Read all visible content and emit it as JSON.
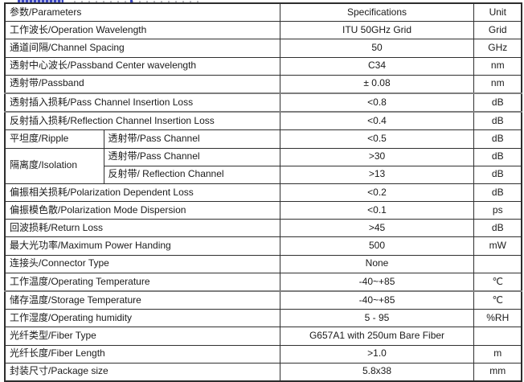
{
  "colors": {
    "table_border": "#2d2d2d",
    "thick_divider": "#7e7e7e",
    "clipped_heading_blue": "#3a46c0",
    "text": "#1a1a1a",
    "background": "#ffffff"
  },
  "table": {
    "rows": [
      {
        "type": "header",
        "param": "参数/Parameters",
        "spec": "Specifications",
        "unit": "Unit"
      },
      {
        "type": "normal",
        "param": "工作波长/Operation Wavelength",
        "spec": "ITU 50GHz Grid",
        "unit": "Grid"
      },
      {
        "type": "normal",
        "param": "通道间隔/Channel Spacing",
        "spec": "50",
        "unit": "GHz"
      },
      {
        "type": "normal",
        "param": "透射中心波长/Passband Center wavelength",
        "spec": "C34",
        "unit": "nm"
      },
      {
        "type": "normal",
        "param": "透射带/Passband",
        "spec": "± 0.08",
        "unit": "nm"
      },
      {
        "type": "normal",
        "param": "透射插入损耗/Pass Channel Insertion Loss",
        "spec": "<0.8",
        "unit": "dB"
      },
      {
        "type": "normal",
        "param": "反射插入损耗/Reflection Channel Insertion Loss",
        "spec": "<0.4",
        "unit": "dB"
      },
      {
        "type": "split",
        "param": "平坦度/Ripple",
        "sub": "透射带/Pass Channel",
        "spec": "<0.5",
        "unit": "dB"
      },
      {
        "type": "span-start",
        "param": "隔离度/Isolation",
        "sub": "透射带/Pass Channel",
        "spec": ">30",
        "unit": "dB"
      },
      {
        "type": "span-cont",
        "sub": "反射带/ Reflection Channel",
        "spec": ">13",
        "unit": "dB"
      },
      {
        "type": "normal",
        "param": "偏振相关损耗/Polarization Dependent Loss",
        "spec": "<0.2",
        "unit": "dB"
      },
      {
        "type": "normal",
        "param": "偏振模色散/Polarization Mode Dispersion",
        "spec": "<0.1",
        "unit": "ps"
      },
      {
        "type": "normal",
        "param": "回波损耗/Return Loss",
        "spec": ">45",
        "unit": "dB"
      },
      {
        "type": "normal",
        "param": "最大光功率/Maximum Power Handing",
        "spec": "500",
        "unit": "mW"
      },
      {
        "type": "normal",
        "param": "连接头/Connector Type",
        "spec": "None",
        "unit": ""
      },
      {
        "type": "normal",
        "param": "工作温度/Operating Temperature",
        "spec": "-40~+85",
        "unit": "℃"
      },
      {
        "type": "normal",
        "param": "储存温度/Storage Temperature",
        "spec": "-40~+85",
        "unit": "℃"
      },
      {
        "type": "normal",
        "param": "工作湿度/Operating humidity",
        "spec": "5 - 95",
        "unit": "%RH"
      },
      {
        "type": "normal",
        "param": "光纤类型/Fiber Type",
        "spec": "G657A1 with 250um Bare Fiber",
        "unit": ""
      },
      {
        "type": "normal",
        "param": "光纤长度/Fiber Length",
        "spec": ">1.0",
        "unit": "m"
      },
      {
        "type": "normal",
        "param": "封装尺寸/Package size",
        "spec": "5.8x38",
        "unit": "mm"
      }
    ]
  }
}
